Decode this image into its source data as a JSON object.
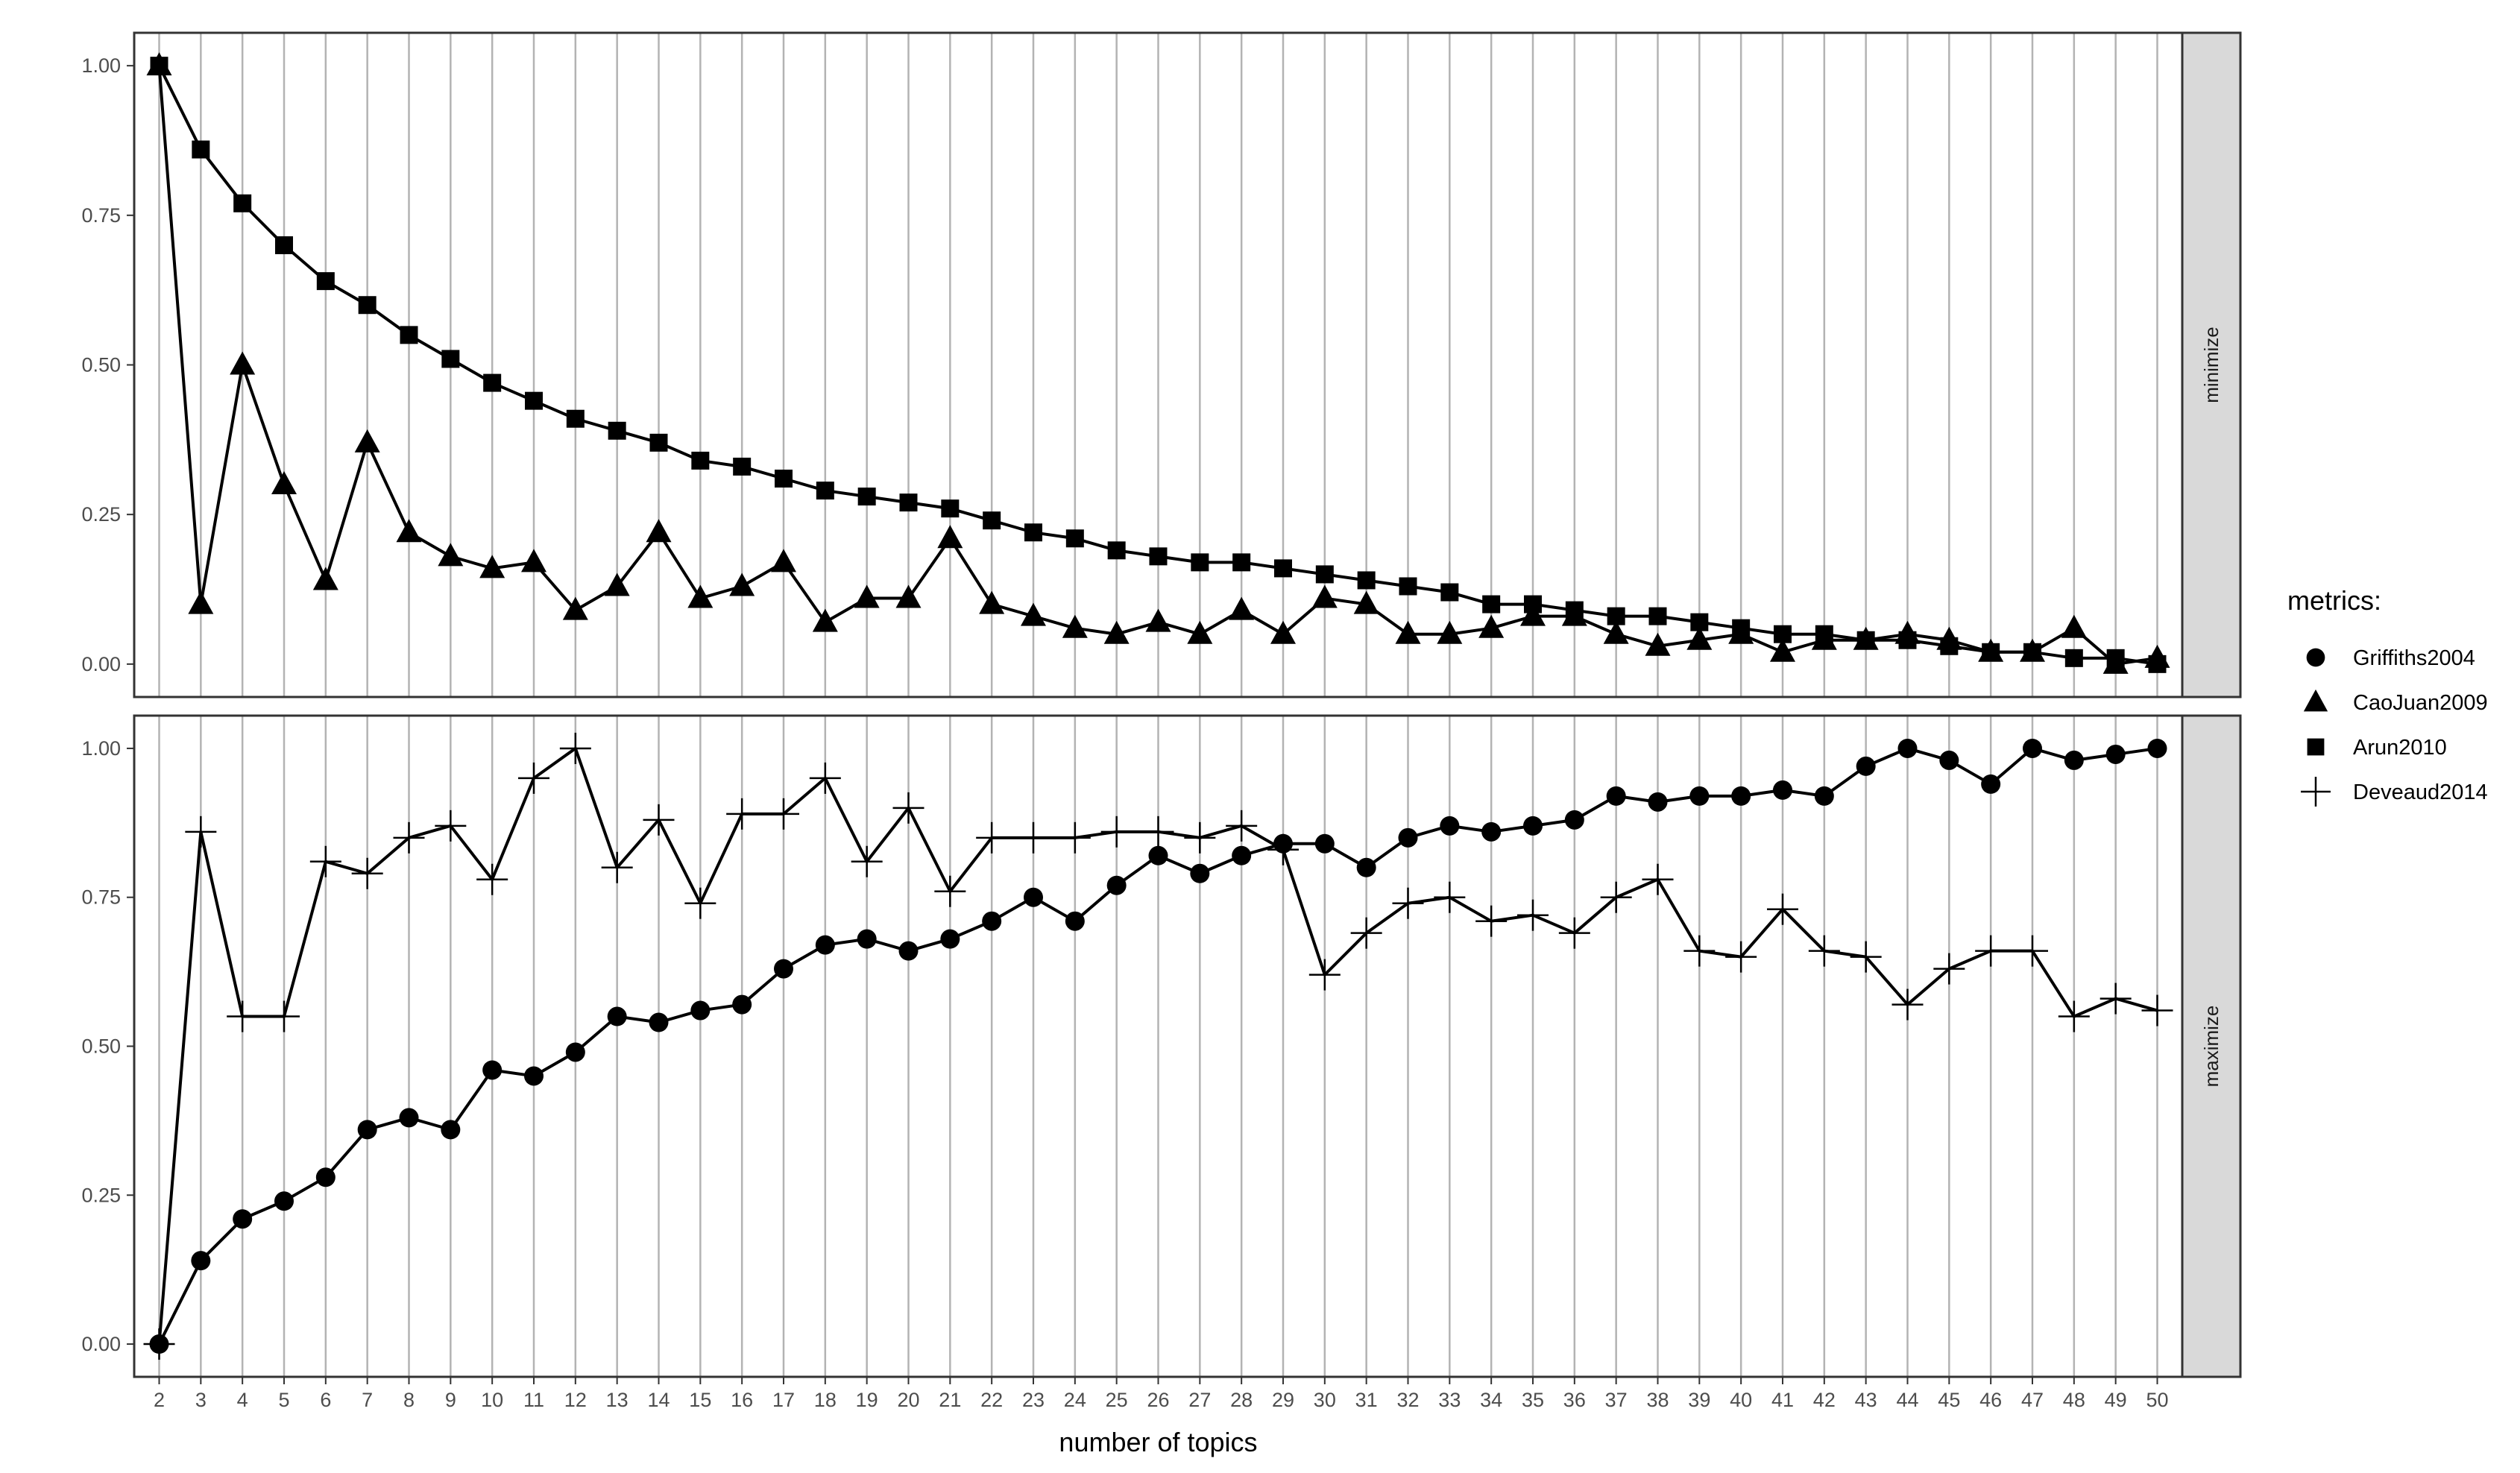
{
  "chart_data": {
    "type": "line",
    "xlabel": "number of topics",
    "x": [
      2,
      3,
      4,
      5,
      6,
      7,
      8,
      9,
      10,
      11,
      12,
      13,
      14,
      15,
      16,
      17,
      18,
      19,
      20,
      21,
      22,
      23,
      24,
      25,
      26,
      27,
      28,
      29,
      30,
      31,
      32,
      33,
      34,
      35,
      36,
      37,
      38,
      39,
      40,
      41,
      42,
      43,
      44,
      45,
      46,
      47,
      48,
      49,
      50
    ],
    "yticks": [
      "0.00",
      "0.25",
      "0.50",
      "0.75",
      "1.00"
    ],
    "ylim": [
      0,
      1
    ],
    "grid": "vertical major lines only",
    "legend": {
      "title": "metrics:",
      "position": "right"
    },
    "panels": [
      {
        "strip": "minimize",
        "series": [
          {
            "name": "CaoJuan2009",
            "marker": "triangle",
            "values": [
              1.0,
              0.1,
              0.5,
              0.3,
              0.14,
              0.37,
              0.22,
              0.18,
              0.16,
              0.17,
              0.09,
              0.13,
              0.22,
              0.11,
              0.13,
              0.17,
              0.07,
              0.11,
              0.11,
              0.21,
              0.1,
              0.08,
              0.06,
              0.05,
              0.07,
              0.05,
              0.09,
              0.05,
              0.11,
              0.1,
              0.05,
              0.05,
              0.06,
              0.08,
              0.08,
              0.05,
              0.03,
              0.04,
              0.05,
              0.02,
              0.04,
              0.04,
              0.05,
              0.04,
              0.02,
              0.02,
              0.06,
              0.0,
              0.01
            ]
          },
          {
            "name": "Arun2010",
            "marker": "square",
            "values": [
              1.0,
              0.86,
              0.77,
              0.7,
              0.64,
              0.6,
              0.55,
              0.51,
              0.47,
              0.44,
              0.41,
              0.39,
              0.37,
              0.34,
              0.33,
              0.31,
              0.29,
              0.28,
              0.27,
              0.26,
              0.24,
              0.22,
              0.21,
              0.19,
              0.18,
              0.17,
              0.17,
              0.16,
              0.15,
              0.14,
              0.13,
              0.12,
              0.1,
              0.1,
              0.09,
              0.08,
              0.08,
              0.07,
              0.06,
              0.05,
              0.05,
              0.04,
              0.04,
              0.03,
              0.02,
              0.02,
              0.01,
              0.01,
              0.0
            ]
          }
        ]
      },
      {
        "strip": "maximize",
        "series": [
          {
            "name": "Griffiths2004",
            "marker": "circle",
            "values": [
              0.0,
              0.14,
              0.21,
              0.24,
              0.28,
              0.36,
              0.38,
              0.36,
              0.46,
              0.45,
              0.49,
              0.55,
              0.54,
              0.56,
              0.57,
              0.63,
              0.67,
              0.68,
              0.66,
              0.68,
              0.71,
              0.75,
              0.71,
              0.77,
              0.82,
              0.79,
              0.82,
              0.84,
              0.84,
              0.8,
              0.85,
              0.87,
              0.86,
              0.87,
              0.88,
              0.92,
              0.91,
              0.92,
              0.92,
              0.93,
              0.92,
              0.97,
              1.0,
              0.98,
              0.94,
              1.0,
              0.98,
              0.99,
              1.0
            ]
          },
          {
            "name": "Deveaud2014",
            "marker": "cross",
            "values": [
              0.0,
              0.86,
              0.55,
              0.55,
              0.81,
              0.79,
              0.85,
              0.87,
              0.78,
              0.95,
              1.0,
              0.8,
              0.88,
              0.74,
              0.89,
              0.89,
              0.95,
              0.81,
              0.9,
              0.76,
              0.85,
              0.85,
              0.85,
              0.86,
              0.86,
              0.85,
              0.87,
              0.83,
              0.62,
              0.69,
              0.74,
              0.75,
              0.71,
              0.72,
              0.69,
              0.75,
              0.78,
              0.66,
              0.65,
              0.73,
              0.66,
              0.65,
              0.57,
              0.63,
              0.66,
              0.66,
              0.55,
              0.58,
              0.56
            ]
          }
        ]
      }
    ],
    "legend_entries": [
      {
        "name": "Griffiths2004",
        "marker": "circle"
      },
      {
        "name": "CaoJuan2009",
        "marker": "triangle"
      },
      {
        "name": "Arun2010",
        "marker": "square"
      },
      {
        "name": "Deveaud2014",
        "marker": "cross"
      }
    ],
    "colors": {
      "series": "#000000",
      "grid": "#b3b3b3",
      "strip_fill": "#d9d9d9",
      "panel_border": "#333333"
    }
  }
}
